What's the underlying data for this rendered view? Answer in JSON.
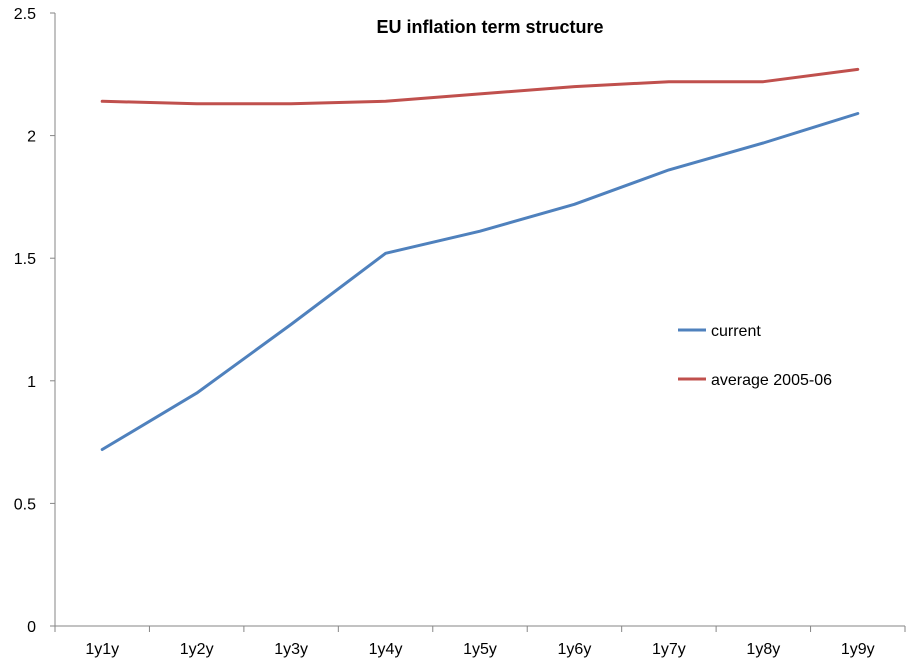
{
  "chart_data": {
    "type": "line",
    "title": "EU inflation term structure",
    "xlabel": "",
    "ylabel": "",
    "categories": [
      "1y1y",
      "1y2y",
      "1y3y",
      "1y4y",
      "1y5y",
      "1y6y",
      "1y7y",
      "1y8y",
      "1y9y"
    ],
    "ylim": [
      0,
      2.5
    ],
    "yticks": [
      "0",
      "0.5",
      "1",
      "1.5",
      "2",
      "2.5"
    ],
    "grid": false,
    "legend_position": "right",
    "series": [
      {
        "name": "current",
        "color": "#4F81BD",
        "values": [
          0.72,
          0.95,
          1.23,
          1.52,
          1.61,
          1.72,
          1.86,
          1.97,
          2.09
        ]
      },
      {
        "name": "average 2005-06",
        "color": "#C0504D",
        "values": [
          2.14,
          2.13,
          2.13,
          2.14,
          2.17,
          2.2,
          2.22,
          2.22,
          2.27
        ]
      }
    ]
  }
}
